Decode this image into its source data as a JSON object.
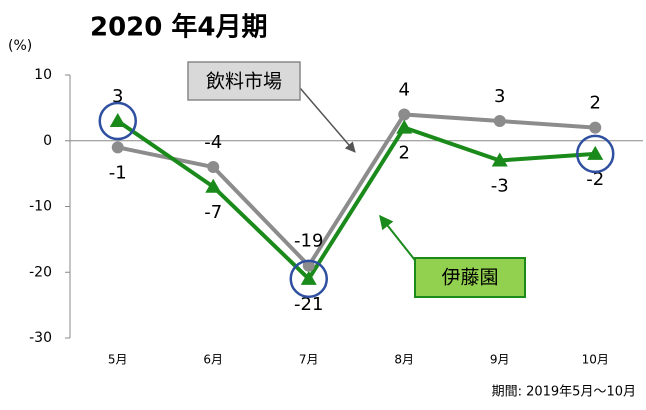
{
  "chart_data": {
    "type": "line",
    "title": "2020 年4月期",
    "y_label": "(%)",
    "note": "期間: 2019年5月～10月",
    "categories": [
      "5月",
      "6月",
      "7月",
      "8月",
      "9月",
      "10月"
    ],
    "series": [
      {
        "name": "飲料市場",
        "color": "#8c8c8c",
        "marker": "circle",
        "values": [
          -1,
          -4,
          -19,
          4,
          3,
          2
        ]
      },
      {
        "name": "伊藤園",
        "color": "#1a8a1a",
        "marker": "triangle",
        "values": [
          3,
          -7,
          -21,
          2,
          -3,
          -2
        ]
      }
    ],
    "ylim": [
      -30,
      10
    ],
    "yticks": [
      -30,
      -20,
      -10,
      0,
      10
    ],
    "grid": false
  }
}
